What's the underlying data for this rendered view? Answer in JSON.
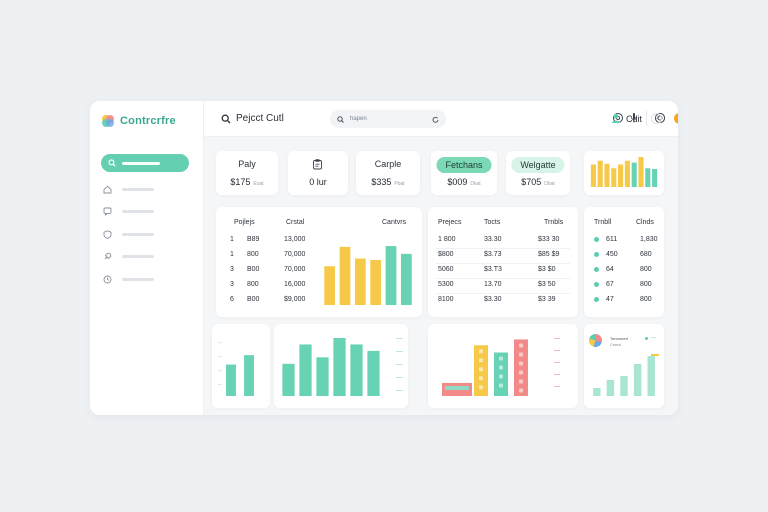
{
  "app": {
    "brand": "Contrcrfre"
  },
  "sidebar": {
    "items": [
      {
        "icon": "search-icon",
        "active": true
      },
      {
        "icon": "home-icon",
        "active": false
      },
      {
        "icon": "chat-icon",
        "active": false
      },
      {
        "icon": "shield-icon",
        "active": false
      },
      {
        "icon": "rocket-icon",
        "active": false
      },
      {
        "icon": "clock-icon",
        "active": false
      }
    ]
  },
  "header": {
    "title": "Pejcct Cutl",
    "search_placeholder": "hapen",
    "user": "Cdit",
    "notification_color": "#f5a623"
  },
  "stats": [
    {
      "label": "Paly",
      "value": "$175",
      "sub": "Eoat",
      "pill": false
    },
    {
      "label": "",
      "value": "0 lur",
      "sub": "",
      "icon": "clipboard-icon",
      "pill": false
    },
    {
      "label": "Carple",
      "value": "$335",
      "sub": "Pbat",
      "pill": false
    },
    {
      "label": "Fetchans",
      "value": "$009",
      "sub": "Dkat",
      "pill": true,
      "pill_color": "#7cd9b5"
    },
    {
      "label": "Welgatte",
      "value": "$705",
      "sub": "Dbat",
      "pill": true,
      "pill_color": "#d8f3e8"
    }
  ],
  "table1": {
    "headers": [
      "Pojlejs",
      "Crstal",
      "Cantvrs"
    ],
    "rows": [
      [
        "1",
        "B89",
        "13,000"
      ],
      [
        "1",
        "800",
        "70,000"
      ],
      [
        "3",
        "B00",
        "70,000"
      ],
      [
        "3",
        "800",
        "16,000"
      ],
      [
        "6",
        "B00",
        "$9,000"
      ]
    ],
    "chart": {
      "type": "bar",
      "values": [
        5,
        7.5,
        6,
        5.8,
        7.6,
        6.6
      ],
      "colors": [
        "#f7c948",
        "#f7c948",
        "#f7c948",
        "#f7c948",
        "#68d2b4",
        "#68d2b4"
      ]
    }
  },
  "table2": {
    "headers": [
      "Prejecs",
      "Tocts",
      "Trnbls"
    ],
    "rows": [
      [
        "1 800",
        "33.30",
        "$33 30"
      ],
      [
        "$800",
        "$3.73",
        "$85 $9"
      ],
      [
        "5060",
        "$3.T3",
        "$3 $0"
      ],
      [
        "5300",
        "13.70",
        "$3 50"
      ],
      [
        "8100",
        "$3.30",
        "$3 39"
      ]
    ]
  },
  "table3": {
    "headers": [
      "Trnbll",
      "Clnds"
    ],
    "rows": [
      {
        "label": "611",
        "value": "1,830",
        "color": "#5ccdb0"
      },
      {
        "label": "450",
        "value": "680",
        "color": "#5ccdb0"
      },
      {
        "label": "64",
        "value": "800",
        "color": "#5ccdb0"
      },
      {
        "label": "67",
        "value": "800",
        "color": "#5ccdb0"
      },
      {
        "label": "47",
        "value": "800",
        "color": "#5ccdb0"
      }
    ]
  },
  "top_right_chart": {
    "type": "bar",
    "values": [
      6,
      7,
      6.2,
      5,
      6,
      7,
      6.5,
      8,
      5,
      4.8
    ],
    "colors": [
      "#f7c948",
      "#f7c948",
      "#f7c948",
      "#f7c948",
      "#f7c948",
      "#f7c948",
      "#68d2b4",
      "#f7c948",
      "#68d2b4",
      "#68d2b4"
    ]
  },
  "bottom_chart1": {
    "type": "bar",
    "values": [
      5,
      6.5
    ],
    "color": "#68d2b4"
  },
  "bottom_chart2": {
    "type": "bar",
    "values": [
      5,
      8,
      6,
      9,
      8,
      7
    ],
    "color": "#68d2b4"
  },
  "bottom_chart3": {
    "type": "bar",
    "bars": [
      {
        "value": 1.8,
        "color": "#f28a8a"
      },
      {
        "value": 7,
        "color": "#f7c948"
      },
      {
        "value": 6,
        "color": "#68d2b4"
      },
      {
        "value": 7.8,
        "color": "#f28a8a"
      }
    ]
  },
  "bottom_chart4": {
    "legend_line1": "Tonormed",
    "legend_line2": "Cnnrd",
    "values": [
      1,
      2,
      2.5,
      4,
      5
    ],
    "color": "#a8e6d2"
  }
}
